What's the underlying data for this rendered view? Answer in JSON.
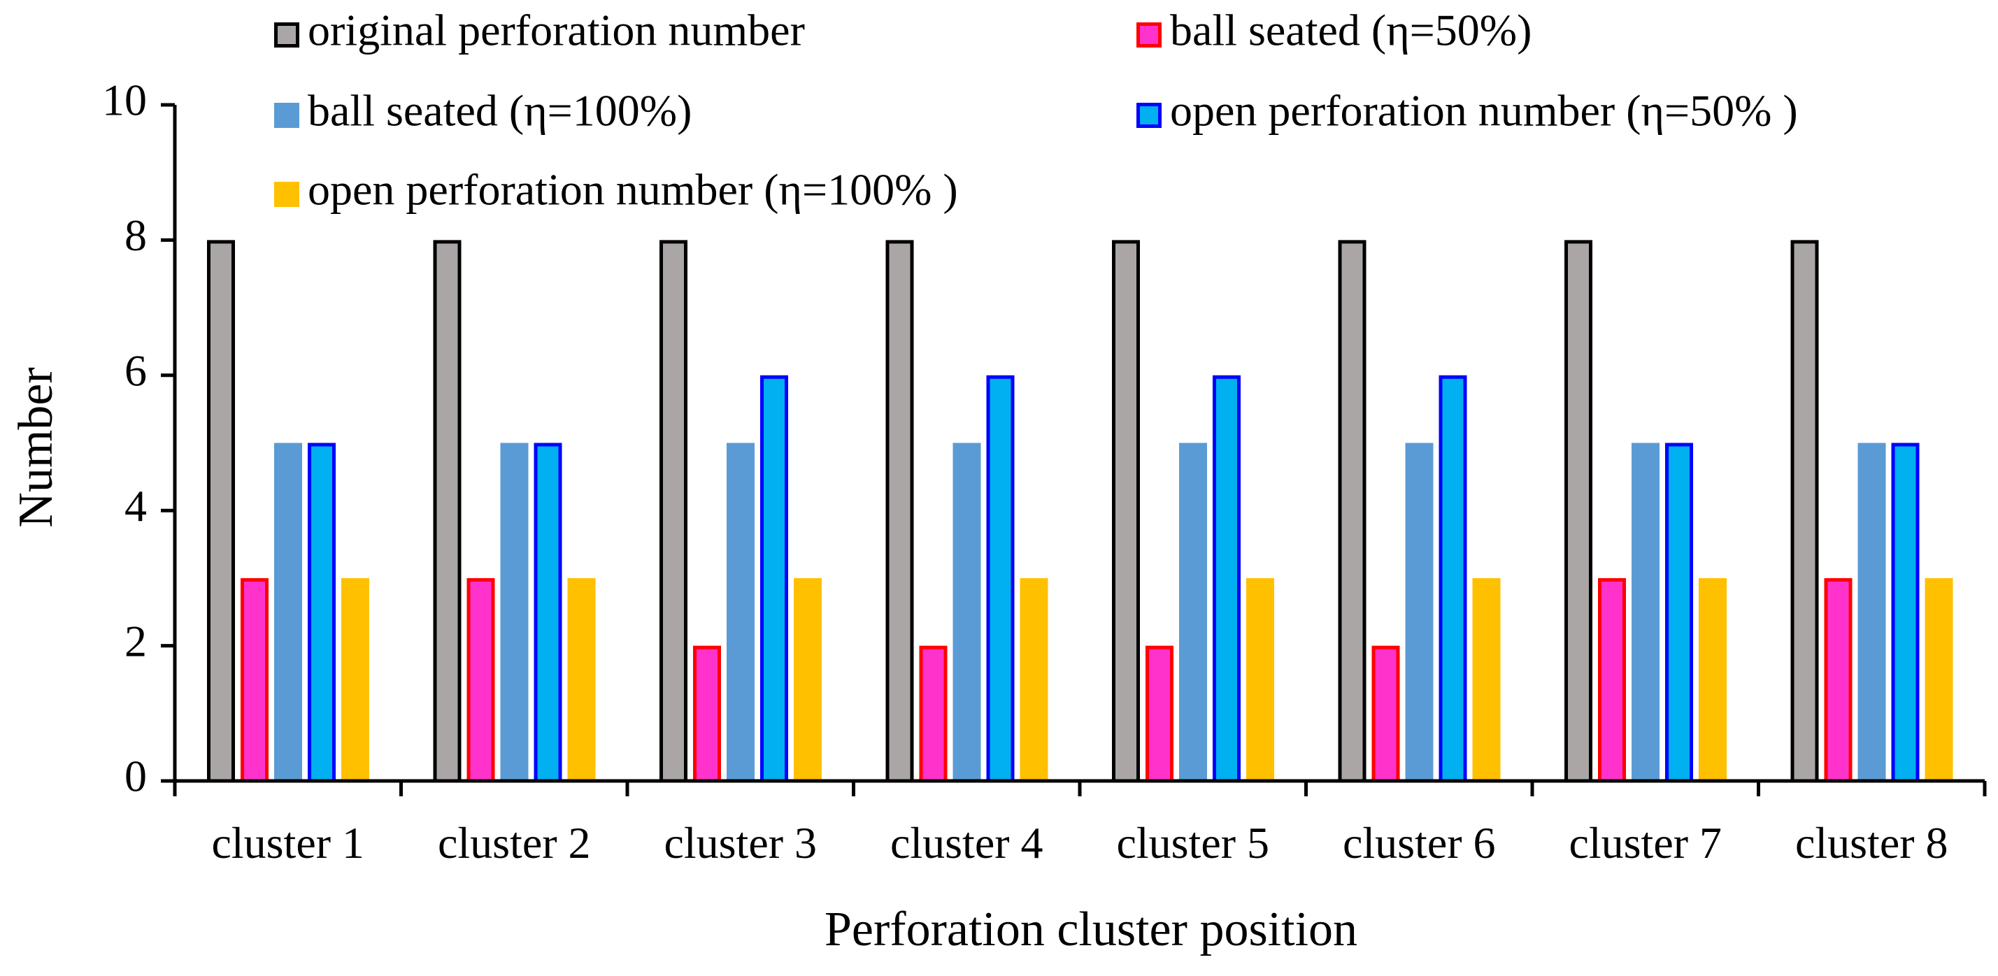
{
  "chart_data": {
    "type": "bar",
    "title": "",
    "xlabel": "Perforation cluster position",
    "ylabel": "Number",
    "ylim": [
      0,
      10
    ],
    "yticks": [
      0,
      2,
      4,
      6,
      8,
      10
    ],
    "grid": false,
    "legend_position": "top",
    "categories": [
      "cluster 1",
      "cluster 2",
      "cluster 3",
      "cluster 4",
      "cluster 5",
      "cluster 6",
      "cluster 7",
      "cluster 8"
    ],
    "series": [
      {
        "name": "original perforation number",
        "fill": "#aaa6a6",
        "stroke": "#000000",
        "values": [
          8,
          8,
          8,
          8,
          8,
          8,
          8,
          8
        ]
      },
      {
        "name": "ball seated (η=50%)",
        "fill": "#ff33cc",
        "stroke": "#ff0000",
        "values": [
          3,
          3,
          2,
          2,
          2,
          2,
          3,
          3
        ]
      },
      {
        "name": "ball seated (η=100%)",
        "fill": "#5b9bd5",
        "stroke": "none",
        "values": [
          5,
          5,
          5,
          5,
          5,
          5,
          5,
          5
        ]
      },
      {
        "name": "open perforation number (η=50% )",
        "fill": "#00b0f0",
        "stroke": "#0000ff",
        "values": [
          5,
          5,
          6,
          6,
          6,
          6,
          5,
          5
        ]
      },
      {
        "name": "open perforation number (η=100% )",
        "fill": "#ffc000",
        "stroke": "none",
        "values": [
          3,
          3,
          3,
          3,
          3,
          3,
          3,
          3
        ]
      }
    ]
  }
}
